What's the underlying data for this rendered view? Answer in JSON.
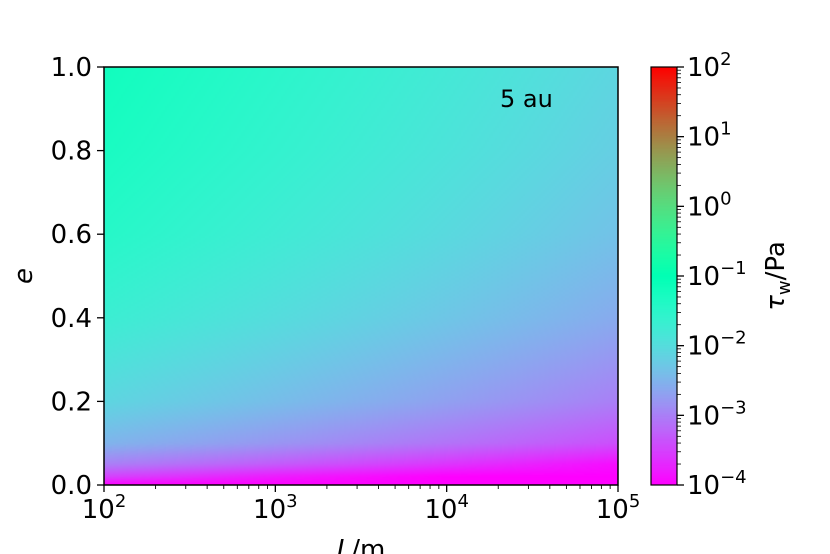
{
  "chart_data": {
    "type": "heatmap",
    "annotation": "5 au",
    "xlabel_base": "L",
    "xlabel_unit": "/m",
    "ylabel": "e",
    "colorbar_label_base": "τ",
    "colorbar_label_sub": "w",
    "colorbar_label_unit": "/Pa",
    "x_scale": "log",
    "xlim": [
      100,
      100000
    ],
    "ylim": [
      0.0,
      1.0
    ],
    "x_ticks": [
      {
        "base": "10",
        "exp": "2",
        "value": 100
      },
      {
        "base": "10",
        "exp": "3",
        "value": 1000
      },
      {
        "base": "10",
        "exp": "4",
        "value": 10000
      },
      {
        "base": "10",
        "exp": "5",
        "value": 100000
      }
    ],
    "y_ticks": [
      {
        "label": "0.0",
        "value": 0.0
      },
      {
        "label": "0.2",
        "value": 0.2
      },
      {
        "label": "0.4",
        "value": 0.4
      },
      {
        "label": "0.6",
        "value": 0.6
      },
      {
        "label": "0.8",
        "value": 0.8
      },
      {
        "label": "1.0",
        "value": 1.0
      }
    ],
    "colorbar": {
      "scale": "log",
      "range": [
        0.0001,
        100
      ],
      "colormap": "rainbow",
      "ticks": [
        {
          "base": "10",
          "exp": "−4",
          "value": 0.0001
        },
        {
          "base": "10",
          "exp": "−3",
          "value": 0.001
        },
        {
          "base": "10",
          "exp": "−2",
          "value": 0.01
        },
        {
          "base": "10",
          "exp": "−1",
          "value": 0.1
        },
        {
          "base": "10",
          "exp": "0",
          "value": 1
        },
        {
          "base": "10",
          "exp": "1",
          "value": 10
        },
        {
          "base": "10",
          "exp": "2",
          "value": 100
        }
      ]
    },
    "field_samples": {
      "description_values_log10": "approximate log10(tau_w) at (log10 L, e)",
      "log10_L": [
        2,
        3,
        4,
        5
      ],
      "e": [
        0.0,
        0.02,
        0.05,
        0.1,
        0.2,
        0.4,
        0.6,
        0.8,
        1.0
      ],
      "values": [
        [
          -4.0,
          -4.0,
          -4.0,
          -4.0
        ],
        [
          -3.5,
          -3.8,
          -4.0,
          -4.0
        ],
        [
          -3.0,
          -3.3,
          -3.6,
          -3.9
        ],
        [
          -2.5,
          -2.8,
          -3.1,
          -3.4
        ],
        [
          -2.1,
          -2.4,
          -2.7,
          -3.0
        ],
        [
          -1.7,
          -2.0,
          -2.3,
          -2.6
        ],
        [
          -1.45,
          -1.75,
          -2.05,
          -2.35
        ],
        [
          -1.3,
          -1.6,
          -1.9,
          -2.2
        ],
        [
          -1.2,
          -1.5,
          -1.8,
          -2.1
        ]
      ]
    }
  }
}
